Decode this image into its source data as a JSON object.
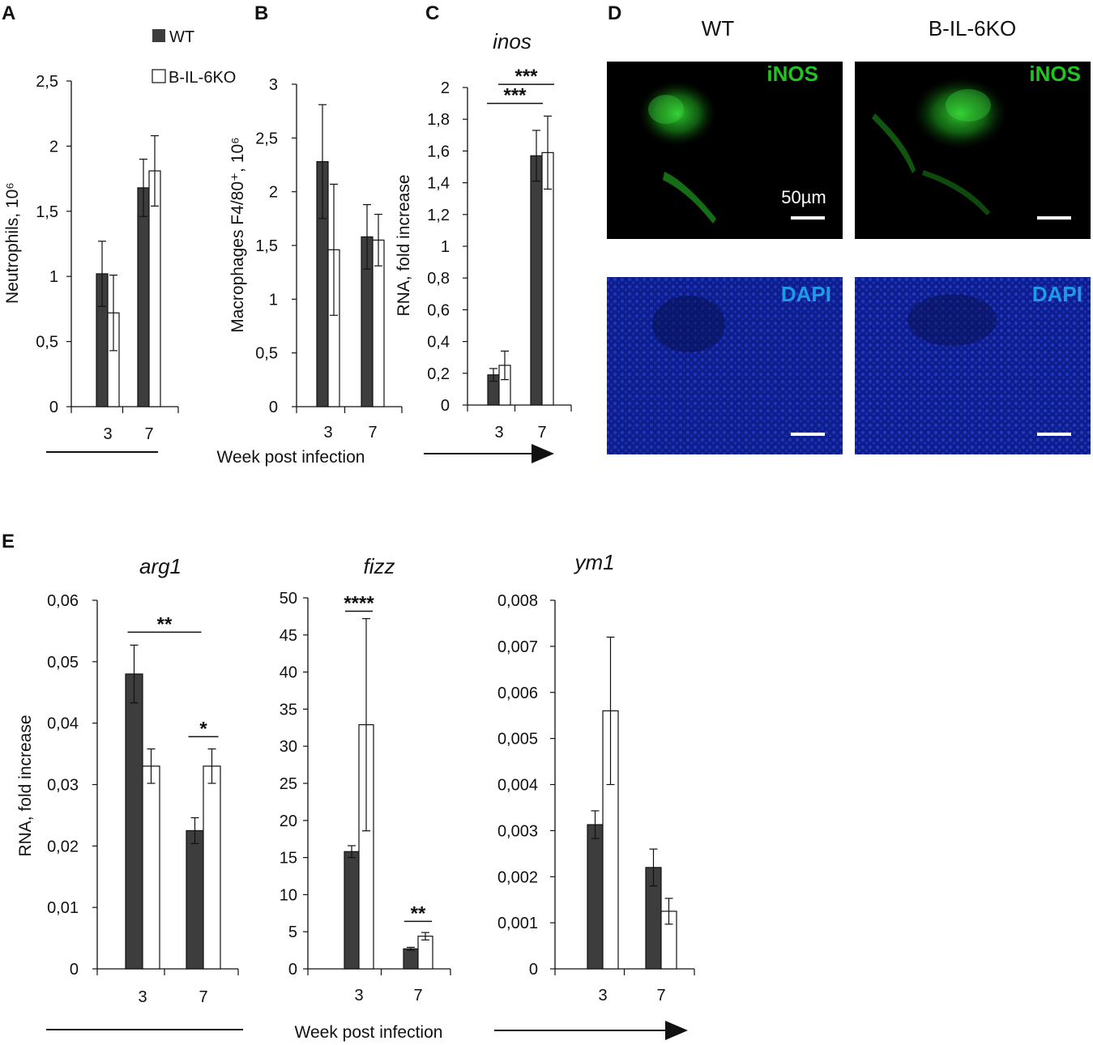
{
  "colors": {
    "wt_bar": "#3d3d3d",
    "ko_bar": "#ffffff",
    "ink": "#111111",
    "inos_green": "#22c322",
    "dapi_blue": "#1e9be6",
    "mic_bg": "#000000"
  },
  "legend": {
    "wt": "WT",
    "ko": "B-IL-6KO"
  },
  "shared_xlabel_top": "Week post infection",
  "shared_xlabel_bottom": "Week post infection",
  "chart_data": [
    {
      "id": "A",
      "type": "bar",
      "panel_letter": "A",
      "title": "",
      "xlabel": "",
      "ylabel": "Neutrophils, 10⁶",
      "categories": [
        "3",
        "7"
      ],
      "ylim": [
        0,
        2.5
      ],
      "yticks": [
        "0",
        "0,5",
        "1",
        "1,5",
        "2",
        "2,5"
      ],
      "series": [
        {
          "name": "WT",
          "values": [
            1.02,
            1.68
          ],
          "errors": [
            0.25,
            0.22
          ]
        },
        {
          "name": "B-IL-6KO",
          "values": [
            0.72,
            1.81
          ],
          "errors": [
            0.29,
            0.27
          ]
        }
      ],
      "significance": []
    },
    {
      "id": "B",
      "type": "bar",
      "panel_letter": "B",
      "title": "",
      "xlabel": "",
      "ylabel": "Macrophages F4/80⁺, 10⁶",
      "categories": [
        "3",
        "7"
      ],
      "ylim": [
        0,
        3
      ],
      "yticks": [
        "0",
        "0,5",
        "1",
        "1,5",
        "2",
        "2,5",
        "3"
      ],
      "series": [
        {
          "name": "WT",
          "values": [
            2.28,
            1.58
          ],
          "errors": [
            0.53,
            0.3
          ]
        },
        {
          "name": "B-IL-6KO",
          "values": [
            1.46,
            1.55
          ],
          "errors": [
            0.61,
            0.24
          ]
        }
      ],
      "significance": []
    },
    {
      "id": "C",
      "type": "bar",
      "panel_letter": "C",
      "title": "inos",
      "xlabel": "",
      "ylabel": "RNA, fold increase",
      "categories": [
        "3",
        "7"
      ],
      "ylim": [
        0,
        2
      ],
      "yticks": [
        "0",
        "0,2",
        "0,4",
        "0,6",
        "0,8",
        "1",
        "1,2",
        "1,4",
        "1,6",
        "1,8",
        "2"
      ],
      "series": [
        {
          "name": "WT",
          "values": [
            0.19,
            1.57
          ],
          "errors": [
            0.04,
            0.16
          ]
        },
        {
          "name": "B-IL-6KO",
          "values": [
            0.25,
            1.59
          ],
          "errors": [
            0.09,
            0.23
          ]
        }
      ],
      "significance": [
        {
          "label": "***",
          "from": "3-WT",
          "to": "7-WT",
          "y": 1.9
        },
        {
          "label": "***",
          "from": "3-KO",
          "to": "7-KO",
          "y": 2.02
        }
      ]
    },
    {
      "id": "E1",
      "type": "bar",
      "panel_letter": "E",
      "title": "arg1",
      "xlabel": "",
      "ylabel": "RNA, fold increase",
      "categories": [
        "3",
        "7"
      ],
      "ylim": [
        0,
        0.06
      ],
      "yticks": [
        "0",
        "0,01",
        "0,02",
        "0,03",
        "0,04",
        "0,05",
        "0,06"
      ],
      "series": [
        {
          "name": "WT",
          "values": [
            0.048,
            0.0225
          ],
          "errors": [
            0.0047,
            0.0021
          ]
        },
        {
          "name": "B-IL-6KO",
          "values": [
            0.033,
            0.033
          ],
          "errors": [
            0.0028,
            0.0028
          ]
        }
      ],
      "significance": [
        {
          "label": "**",
          "from": "3-WT",
          "to": "7-WT",
          "y": 0.0548
        },
        {
          "label": "*",
          "from": "7-WT",
          "to": "7-KO",
          "y": 0.0378
        }
      ]
    },
    {
      "id": "E2",
      "type": "bar",
      "panel_letter": "",
      "title": "fizz",
      "xlabel": "",
      "ylabel": "",
      "categories": [
        "3",
        "7"
      ],
      "ylim": [
        0,
        50
      ],
      "yticks": [
        "0",
        "5",
        "10",
        "15",
        "20",
        "25",
        "30",
        "35",
        "40",
        "45",
        "50"
      ],
      "series": [
        {
          "name": "WT",
          "values": [
            15.8,
            2.7
          ],
          "errors": [
            0.8,
            0.2
          ]
        },
        {
          "name": "B-IL-6KO",
          "values": [
            32.9,
            4.4
          ],
          "errors": [
            14.3,
            0.5
          ]
        }
      ],
      "significance": [
        {
          "label": "****",
          "from": "3-WT",
          "to": "3-KO",
          "y": 48.2
        },
        {
          "label": "**",
          "from": "7-WT",
          "to": "7-KO",
          "y": 6.4
        }
      ]
    },
    {
      "id": "E3",
      "type": "bar",
      "panel_letter": "",
      "title": "ym1",
      "xlabel": "",
      "ylabel": "",
      "categories": [
        "3",
        "7"
      ],
      "ylim": [
        0,
        0.008
      ],
      "yticks": [
        "0",
        "0,001",
        "0,002",
        "0,003",
        "0,004",
        "0,005",
        "0,006",
        "0,007",
        "0,008"
      ],
      "series": [
        {
          "name": "WT",
          "values": [
            0.00313,
            0.0022
          ],
          "errors": [
            0.0003,
            0.0004
          ]
        },
        {
          "name": "B-IL-6KO",
          "values": [
            0.0056,
            0.00125
          ],
          "errors": [
            0.0016,
            0.00028
          ]
        }
      ],
      "significance": []
    }
  ],
  "microscopy": {
    "panel_letter": "D",
    "columns": [
      "WT",
      "B-IL-6KO"
    ],
    "stain_top": "iNOS",
    "stain_bottom": "DAPI",
    "scale_bar": "50µm"
  }
}
